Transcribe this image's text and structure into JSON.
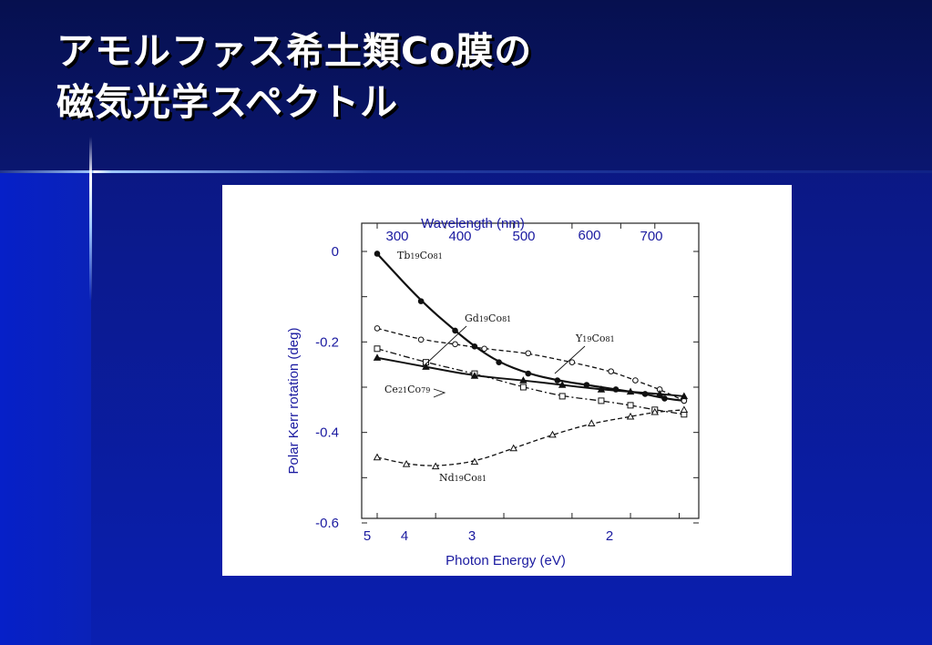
{
  "title": {
    "line1": "アモルファス希土類Co膜の",
    "line2": "磁気光学スペクトル"
  },
  "chart_data": {
    "type": "line",
    "title": "",
    "xlabel": "Photon Energy (eV)",
    "ylabel": "Polar Kerr rotation (deg)",
    "top_xlabel": "Wavelength (nm)",
    "xlim": [
      4.6,
      1.43
    ],
    "ylim": [
      -0.6,
      0
    ],
    "x_ticks": [
      "5",
      "4",
      "3",
      "2"
    ],
    "y_ticks": [
      "0",
      "-0.2",
      "-0.4",
      "-0.6"
    ],
    "top_ticks": [
      "300",
      "400",
      "500",
      "600",
      "700"
    ],
    "series": [
      {
        "name": "Tb19Co81",
        "style": "solid-filled-circle",
        "x": [
          4.6,
          4.15,
          3.8,
          3.6,
          3.35,
          3.05,
          2.75,
          2.45,
          2.15,
          1.85,
          1.65,
          1.45
        ],
        "y": [
          -0.005,
          -0.11,
          -0.175,
          -0.21,
          -0.245,
          -0.27,
          -0.285,
          -0.295,
          -0.305,
          -0.315,
          -0.325,
          -0.33
        ]
      },
      {
        "name": "Gd19Co81",
        "style": "dashdot-open-square",
        "x": [
          4.6,
          4.1,
          3.6,
          3.1,
          2.7,
          2.3,
          2.0,
          1.75,
          1.45
        ],
        "y": [
          -0.215,
          -0.245,
          -0.27,
          -0.3,
          -0.32,
          -0.33,
          -0.34,
          -0.35,
          -0.36
        ]
      },
      {
        "name": "Y19Co81",
        "style": "dashed-open-circle",
        "x": [
          4.6,
          4.15,
          3.8,
          3.5,
          3.05,
          2.6,
          2.2,
          1.95,
          1.7,
          1.45
        ],
        "y": [
          -0.17,
          -0.195,
          -0.205,
          -0.215,
          -0.225,
          -0.245,
          -0.265,
          -0.285,
          -0.305,
          -0.33
        ]
      },
      {
        "name": "Ce21Co79",
        "style": "solid-filled-triangle",
        "x": [
          4.6,
          4.1,
          3.6,
          3.1,
          2.7,
          2.3,
          2.0,
          1.7,
          1.45
        ],
        "y": [
          -0.235,
          -0.255,
          -0.275,
          -0.285,
          -0.295,
          -0.305,
          -0.31,
          -0.315,
          -0.32
        ]
      },
      {
        "name": "Nd19Co81",
        "style": "dashed-open-triangle",
        "x": [
          4.6,
          4.3,
          4.0,
          3.6,
          3.2,
          2.8,
          2.4,
          2.0,
          1.75,
          1.45
        ],
        "y": [
          -0.455,
          -0.47,
          -0.475,
          -0.465,
          -0.435,
          -0.405,
          -0.38,
          -0.365,
          -0.355,
          -0.35
        ]
      }
    ]
  }
}
